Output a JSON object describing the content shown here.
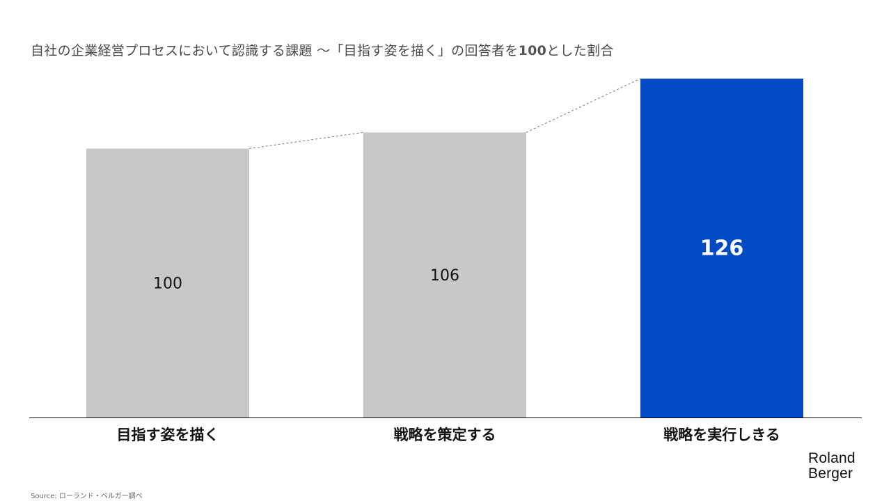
{
  "title": {
    "main": "自社の企業経営プロセスにおいて認識する課題 ～「目指す姿を描く」の回答者を",
    "bold": "100",
    "tail": "とした割合"
  },
  "chart_data": {
    "type": "bar",
    "categories": [
      "目指す姿を描く",
      "戦略を策定する",
      "戦略を実行しきる"
    ],
    "values": [
      100,
      106,
      126
    ],
    "value_labels": [
      "100",
      "106",
      "126"
    ],
    "highlight_index": 2,
    "colors": {
      "default": "#c8c8c8",
      "highlight": "#004bc3",
      "connector": "#777777",
      "axis": "#000000"
    },
    "ylim": [
      0,
      126
    ],
    "grid": false,
    "connector_lines": "dashed",
    "xlabel": "",
    "ylabel": ""
  },
  "logo": {
    "line1": "Roland",
    "line2": "Berger"
  },
  "source": "Source: ローランド・ベルガー調べ"
}
